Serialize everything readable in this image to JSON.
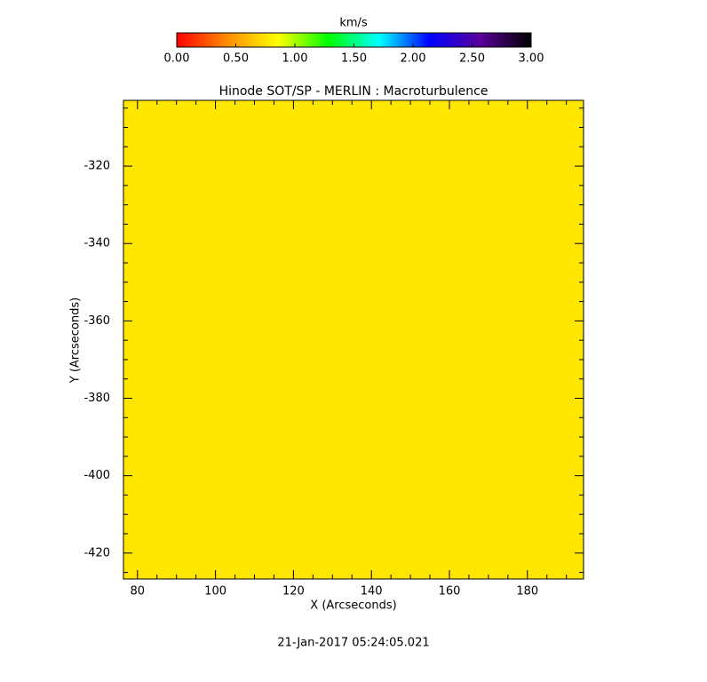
{
  "chart_data": {
    "type": "heatmap",
    "title": "Hinode SOT/SP - MERLIN : Macroturbulence",
    "x_label": "X (Arcseconds)",
    "y_label": "Y (Arcseconds)",
    "footer": "21-Jan-2017 05:24:05.021",
    "values": [
      [
        0.65
      ]
    ],
    "color": "#ffe600",
    "xlim": [
      76.4,
      194.4
    ],
    "ylim": [
      -426.7,
      -303.0
    ],
    "xticks": [
      80,
      100,
      120,
      140,
      160,
      180
    ],
    "yticks": [
      -320,
      -340,
      -360,
      -380,
      -400,
      -420
    ],
    "xminor": [
      85,
      90,
      95,
      105,
      110,
      115,
      125,
      130,
      135,
      145,
      150,
      155,
      165,
      170,
      175,
      185,
      190
    ],
    "yminor": [
      -305,
      -310,
      -315,
      -325,
      -330,
      -335,
      -345,
      -350,
      -355,
      -365,
      -370,
      -375,
      -385,
      -390,
      -395,
      -405,
      -410,
      -415,
      -425
    ],
    "colorbar": {
      "label": "km/s",
      "lim": [
        0,
        3
      ],
      "colors": [
        "#ff0000",
        "#ff8c00",
        "#ffff00",
        "#00ff00",
        "#00ffff",
        "#0000ff",
        "#5a0099",
        "#000000"
      ],
      "ticks": [
        {
          "value": 0,
          "label": "0.00"
        },
        {
          "value": 0.5,
          "label": "0.50"
        },
        {
          "value": 1,
          "label": "1.00"
        },
        {
          "value": 1.5,
          "label": "1.50"
        },
        {
          "value": 2,
          "label": "2.00"
        },
        {
          "value": 2.5,
          "label": "2.50"
        },
        {
          "value": 3,
          "label": "3.00"
        }
      ]
    }
  }
}
